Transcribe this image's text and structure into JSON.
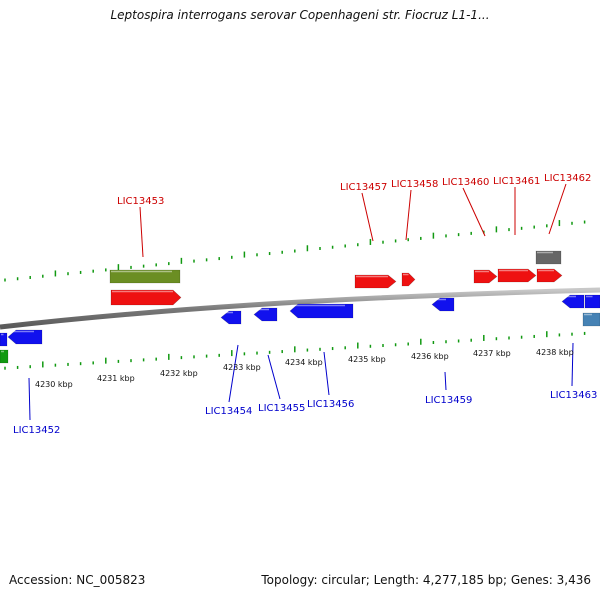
{
  "title": "Leptospira interrogans serovar Copenhageni str. Fiocruz L1-1...",
  "footer": {
    "accession": "Accession: NC_005823",
    "summary": "Topology: circular; Length: 4,277,185 bp; Genes: 3,436"
  },
  "colors": {
    "forward_gene": "#ee1111",
    "reverse_gene": "#1111ee",
    "olive_feature": "#6b8e23",
    "green_feature": "#119911",
    "gray_feature": "#666666",
    "steel_feature": "#4682b4",
    "backbone": "#8c8c8c",
    "ticks": "#119911",
    "forward_label": "#cc0000",
    "reverse_label": "#0000cc"
  },
  "scale_labels": [
    "4230 kbp",
    "4231 kbp",
    "4232 kbp",
    "4233 kbp",
    "4234 kbp",
    "4235 kbp",
    "4236 kbp",
    "4237 kbp",
    "4238 kbp"
  ],
  "forward_genes": [
    "LIC13453",
    "LIC13457",
    "LIC13458",
    "LIC13460",
    "LIC13461",
    "LIC13462"
  ],
  "reverse_genes": [
    "LIC13452",
    "LIC13454",
    "LIC13455",
    "LIC13456",
    "LIC13459",
    "LIC13463"
  ]
}
